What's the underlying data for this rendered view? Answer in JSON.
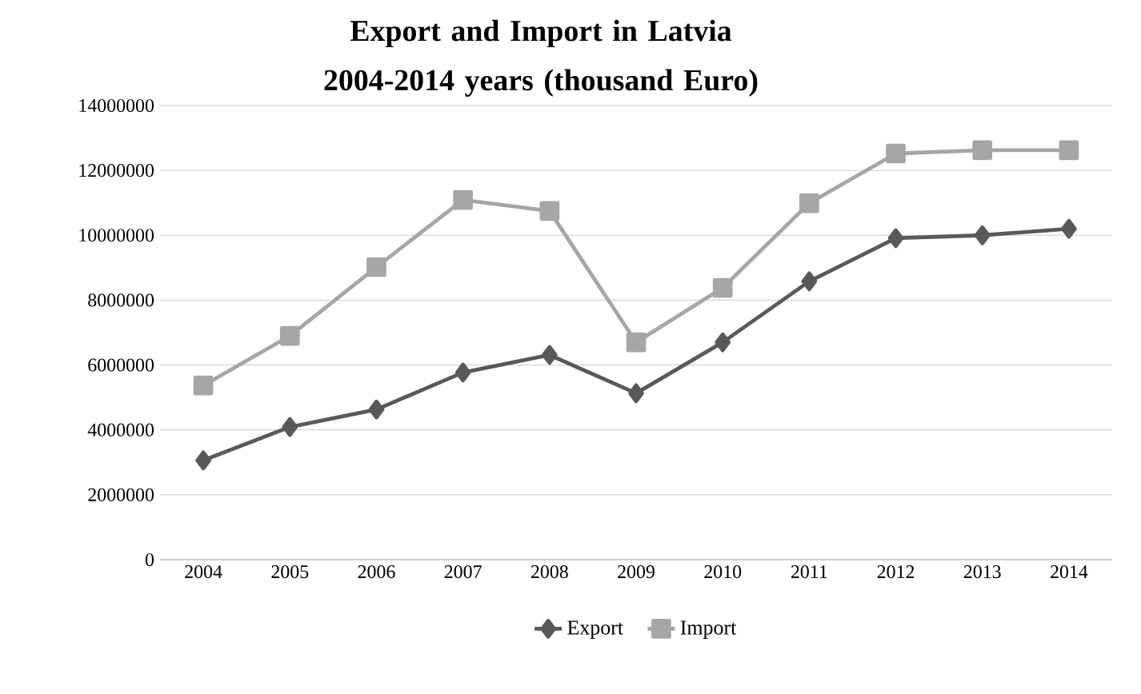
{
  "chart_data": {
    "type": "line",
    "title": "Export and Import in Latvia 2004-2014 years (thousand Euro)",
    "categories": [
      "2004",
      "2005",
      "2006",
      "2007",
      "2008",
      "2009",
      "2010",
      "2011",
      "2012",
      "2013",
      "2014"
    ],
    "series": [
      {
        "name": "Export",
        "color": "#595959",
        "marker": "diamond",
        "values": [
          3060000,
          4090000,
          4630000,
          5770000,
          6310000,
          5130000,
          6700000,
          8580000,
          9910000,
          10000000,
          10200000
        ]
      },
      {
        "name": "Import",
        "color": "#a6a6a6",
        "marker": "square",
        "values": [
          5370000,
          6900000,
          9020000,
          11090000,
          10750000,
          6700000,
          8380000,
          10990000,
          12520000,
          12620000,
          12620000
        ]
      }
    ],
    "ylim": [
      0,
      14000000
    ],
    "yticks": [
      0,
      2000000,
      4000000,
      6000000,
      8000000,
      10000000,
      12000000,
      14000000
    ],
    "grid": "y",
    "legend": "bottom",
    "line_style": "solid"
  }
}
